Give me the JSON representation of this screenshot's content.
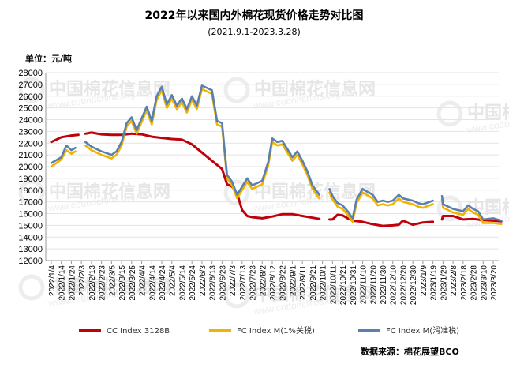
{
  "chart_data": {
    "type": "line",
    "title": "2022年以来国内外棉花现货价格走势对比图",
    "subtitle": "(2021.9.1-2023.3.28)",
    "ylabel": "单位：元/吨",
    "source": "数据来源：棉花展望BCO",
    "watermark": {
      "brand": "中国棉花信息网",
      "url": "www.cottonchina.org.cn"
    },
    "ylim": [
      12000,
      28000
    ],
    "ytick_step": 1000,
    "x_tick_labels": [
      "2022/1/4",
      "2022/1/14",
      "2022/1/24",
      "2022/2/3",
      "2022/2/13",
      "2022/2/23",
      "2022/3/5",
      "2022/3/15",
      "2022/3/25",
      "2022/4/4",
      "2022/4/14",
      "2022/4/24",
      "2022/5/4",
      "2022/5/14",
      "2022/5/24",
      "2022/6/3",
      "2022/6/13",
      "2022/6/23",
      "2022/7/3",
      "2022/7/13",
      "2022/7/23",
      "2022/8/2",
      "2022/8/12",
      "2022/8/22",
      "2022/9/1",
      "2022/9/11",
      "2022/9/21",
      "2022/10/1",
      "2022/10/11",
      "2022/10/21",
      "2022/10/31",
      "2022/11/10",
      "2022/11/20",
      "2022/11/30",
      "2022/12/10",
      "2022/12/20",
      "2022/12/30",
      "2023/1/9",
      "2023/1/19",
      "2023/1/29",
      "2023/2/8",
      "2023/2/18",
      "2023/2/28",
      "2023/3/10",
      "2023/3/20"
    ],
    "legend_position": "bottom",
    "series": [
      {
        "name": "CC Index 3128B",
        "color": "#c0000b",
        "points": [
          [
            "2022/1/4",
            22100
          ],
          [
            "2022/1/14",
            22500
          ],
          [
            "2022/1/24",
            22650
          ],
          [
            "2022/1/31",
            22700
          ],
          [
            "2022/2/3",
            null
          ],
          [
            "2022/2/7",
            22800
          ],
          [
            "2022/2/13",
            22900
          ],
          [
            "2022/2/23",
            22750
          ],
          [
            "2022/3/5",
            22700
          ],
          [
            "2022/3/15",
            22700
          ],
          [
            "2022/3/25",
            22800
          ],
          [
            "2022/4/4",
            22750
          ],
          [
            "2022/4/14",
            22550
          ],
          [
            "2022/4/24",
            22450
          ],
          [
            "2022/5/4",
            22350
          ],
          [
            "2022/5/14",
            22300
          ],
          [
            "2022/5/24",
            21900
          ],
          [
            "2022/6/3",
            21200
          ],
          [
            "2022/6/13",
            20500
          ],
          [
            "2022/6/23",
            19800
          ],
          [
            "2022/6/28",
            18500
          ],
          [
            "2022/7/3",
            18300
          ],
          [
            "2022/7/8",
            17700
          ],
          [
            "2022/7/13",
            16300
          ],
          [
            "2022/7/18",
            15800
          ],
          [
            "2022/7/23",
            15700
          ],
          [
            "2022/8/2",
            15600
          ],
          [
            "2022/8/12",
            15750
          ],
          [
            "2022/8/22",
            15950
          ],
          [
            "2022/9/1",
            15950
          ],
          [
            "2022/9/11",
            15800
          ],
          [
            "2022/9/21",
            15650
          ],
          [
            "2022/9/28",
            15550
          ],
          [
            "2022/10/1",
            null
          ],
          [
            "2022/10/8",
            15500
          ],
          [
            "2022/10/11",
            15500
          ],
          [
            "2022/10/16",
            15900
          ],
          [
            "2022/10/21",
            15850
          ],
          [
            "2022/10/26",
            15600
          ],
          [
            "2022/10/31",
            15400
          ],
          [
            "2022/11/10",
            15300
          ],
          [
            "2022/11/20",
            15100
          ],
          [
            "2022/11/30",
            14950
          ],
          [
            "2022/12/10",
            15000
          ],
          [
            "2022/12/16",
            15050
          ],
          [
            "2022/12/20",
            15400
          ],
          [
            "2022/12/30",
            15050
          ],
          [
            "2023/1/9",
            15250
          ],
          [
            "2023/1/19",
            15300
          ],
          [
            "2023/1/20",
            null
          ],
          [
            "2023/1/28",
            15500
          ],
          [
            "2023/1/29",
            15800
          ],
          [
            "2023/2/8",
            15800
          ],
          [
            "2023/2/18",
            15500
          ],
          [
            "2023/2/28",
            15550
          ],
          [
            "2023/3/10",
            15450
          ],
          [
            "2023/3/20",
            15400
          ],
          [
            "2023/3/28",
            15350
          ]
        ]
      },
      {
        "name": "FC Index M(1%关税)",
        "color": "#f0b400",
        "points": [
          [
            "2022/1/4",
            20100
          ],
          [
            "2022/1/14",
            20700
          ],
          [
            "2022/1/19",
            21500
          ],
          [
            "2022/1/24",
            21200
          ],
          [
            "2022/1/28",
            21400
          ],
          [
            "2022/2/3",
            null
          ],
          [
            "2022/2/7",
            21900
          ],
          [
            "2022/2/13",
            21500
          ],
          [
            "2022/2/23",
            21100
          ],
          [
            "2022/3/5",
            20800
          ],
          [
            "2022/3/10",
            21100
          ],
          [
            "2022/3/15",
            21900
          ],
          [
            "2022/3/20",
            23500
          ],
          [
            "2022/3/25",
            24000
          ],
          [
            "2022/3/30",
            22900
          ],
          [
            "2022/4/4",
            23900
          ],
          [
            "2022/4/9",
            24900
          ],
          [
            "2022/4/14",
            23700
          ],
          [
            "2022/4/19",
            25800
          ],
          [
            "2022/4/24",
            26600
          ],
          [
            "2022/4/29",
            25100
          ],
          [
            "2022/5/4",
            25900
          ],
          [
            "2022/5/9",
            25000
          ],
          [
            "2022/5/14",
            25600
          ],
          [
            "2022/5/19",
            24700
          ],
          [
            "2022/5/24",
            25800
          ],
          [
            "2022/5/29",
            25000
          ],
          [
            "2022/6/3",
            26700
          ],
          [
            "2022/6/8",
            26500
          ],
          [
            "2022/6/13",
            26300
          ],
          [
            "2022/6/18",
            23700
          ],
          [
            "2022/6/23",
            23500
          ],
          [
            "2022/6/28",
            19100
          ],
          [
            "2022/7/3",
            18500
          ],
          [
            "2022/7/8",
            17400
          ],
          [
            "2022/7/13",
            18100
          ],
          [
            "2022/7/18",
            18800
          ],
          [
            "2022/7/23",
            18200
          ],
          [
            "2022/8/2",
            18600
          ],
          [
            "2022/8/8",
            20200
          ],
          [
            "2022/8/12",
            22200
          ],
          [
            "2022/8/17",
            21900
          ],
          [
            "2022/8/22",
            22000
          ],
          [
            "2022/9/1",
            20600
          ],
          [
            "2022/9/6",
            21100
          ],
          [
            "2022/9/11",
            20300
          ],
          [
            "2022/9/16",
            19400
          ],
          [
            "2022/9/21",
            18200
          ],
          [
            "2022/9/28",
            17400
          ],
          [
            "2022/10/1",
            null
          ],
          [
            "2022/10/8",
            17900
          ],
          [
            "2022/10/11",
            17300
          ],
          [
            "2022/10/16",
            16700
          ],
          [
            "2022/10/21",
            16500
          ],
          [
            "2022/10/26",
            16000
          ],
          [
            "2022/10/31",
            15400
          ],
          [
            "2022/11/4",
            17000
          ],
          [
            "2022/11/10",
            17900
          ],
          [
            "2022/11/20",
            17400
          ],
          [
            "2022/11/25",
            16800
          ],
          [
            "2022/11/30",
            16900
          ],
          [
            "2022/12/5",
            16800
          ],
          [
            "2022/12/10",
            16900
          ],
          [
            "2022/12/16",
            17400
          ],
          [
            "2022/12/20",
            17100
          ],
          [
            "2022/12/30",
            16900
          ],
          [
            "2023/1/4",
            16700
          ],
          [
            "2023/1/9",
            16600
          ],
          [
            "2023/1/19",
            16900
          ],
          [
            "2023/1/20",
            null
          ],
          [
            "2023/1/28",
            17300
          ],
          [
            "2023/1/29",
            16600
          ],
          [
            "2023/2/8",
            16200
          ],
          [
            "2023/2/18",
            16000
          ],
          [
            "2023/2/23",
            16500
          ],
          [
            "2023/2/28",
            16200
          ],
          [
            "2023/3/5",
            16000
          ],
          [
            "2023/3/10",
            15300
          ],
          [
            "2023/3/20",
            15300
          ],
          [
            "2023/3/28",
            15200
          ]
        ]
      },
      {
        "name": "FC Index M(滑准税)",
        "color": "#5b80ad",
        "points": [
          [
            "2022/1/4",
            20300
          ],
          [
            "2022/1/14",
            20800
          ],
          [
            "2022/1/19",
            21800
          ],
          [
            "2022/1/24",
            21400
          ],
          [
            "2022/1/28",
            21600
          ],
          [
            "2022/2/3",
            null
          ],
          [
            "2022/2/7",
            22100
          ],
          [
            "2022/2/13",
            21700
          ],
          [
            "2022/2/23",
            21300
          ],
          [
            "2022/3/5",
            21000
          ],
          [
            "2022/3/10",
            21300
          ],
          [
            "2022/3/15",
            22100
          ],
          [
            "2022/3/20",
            23700
          ],
          [
            "2022/3/25",
            24200
          ],
          [
            "2022/3/30",
            23100
          ],
          [
            "2022/4/4",
            24100
          ],
          [
            "2022/4/9",
            25100
          ],
          [
            "2022/4/14",
            23900
          ],
          [
            "2022/4/19",
            26000
          ],
          [
            "2022/4/24",
            26800
          ],
          [
            "2022/4/29",
            25300
          ],
          [
            "2022/5/4",
            26100
          ],
          [
            "2022/5/9",
            25200
          ],
          [
            "2022/5/14",
            25800
          ],
          [
            "2022/5/19",
            24900
          ],
          [
            "2022/5/24",
            26000
          ],
          [
            "2022/5/29",
            25200
          ],
          [
            "2022/6/3",
            26900
          ],
          [
            "2022/6/8",
            26700
          ],
          [
            "2022/6/13",
            26500
          ],
          [
            "2022/6/18",
            23900
          ],
          [
            "2022/6/23",
            23700
          ],
          [
            "2022/6/28",
            19300
          ],
          [
            "2022/7/3",
            18700
          ],
          [
            "2022/7/8",
            17600
          ],
          [
            "2022/7/13",
            18300
          ],
          [
            "2022/7/18",
            19000
          ],
          [
            "2022/7/23",
            18400
          ],
          [
            "2022/8/2",
            18800
          ],
          [
            "2022/8/8",
            20400
          ],
          [
            "2022/8/12",
            22400
          ],
          [
            "2022/8/17",
            22100
          ],
          [
            "2022/8/22",
            22200
          ],
          [
            "2022/9/1",
            20800
          ],
          [
            "2022/9/6",
            21300
          ],
          [
            "2022/9/11",
            20500
          ],
          [
            "2022/9/16",
            19600
          ],
          [
            "2022/9/21",
            18400
          ],
          [
            "2022/9/28",
            17600
          ],
          [
            "2022/10/1",
            null
          ],
          [
            "2022/10/8",
            18100
          ],
          [
            "2022/10/11",
            17500
          ],
          [
            "2022/10/16",
            16900
          ],
          [
            "2022/10/21",
            16700
          ],
          [
            "2022/10/26",
            16200
          ],
          [
            "2022/10/31",
            15600
          ],
          [
            "2022/11/4",
            17200
          ],
          [
            "2022/11/10",
            18100
          ],
          [
            "2022/11/20",
            17600
          ],
          [
            "2022/11/25",
            17000
          ],
          [
            "2022/11/30",
            17100
          ],
          [
            "2022/12/5",
            17000
          ],
          [
            "2022/12/10",
            17100
          ],
          [
            "2022/12/16",
            17600
          ],
          [
            "2022/12/20",
            17300
          ],
          [
            "2022/12/30",
            17100
          ],
          [
            "2023/1/4",
            16900
          ],
          [
            "2023/1/9",
            16800
          ],
          [
            "2023/1/19",
            17100
          ],
          [
            "2023/1/20",
            null
          ],
          [
            "2023/1/28",
            17500
          ],
          [
            "2023/1/29",
            16800
          ],
          [
            "2023/2/8",
            16400
          ],
          [
            "2023/2/18",
            16200
          ],
          [
            "2023/2/23",
            16700
          ],
          [
            "2023/2/28",
            16400
          ],
          [
            "2023/3/5",
            16200
          ],
          [
            "2023/3/10",
            15500
          ],
          [
            "2023/3/20",
            15600
          ],
          [
            "2023/3/28",
            15400
          ]
        ]
      }
    ]
  }
}
